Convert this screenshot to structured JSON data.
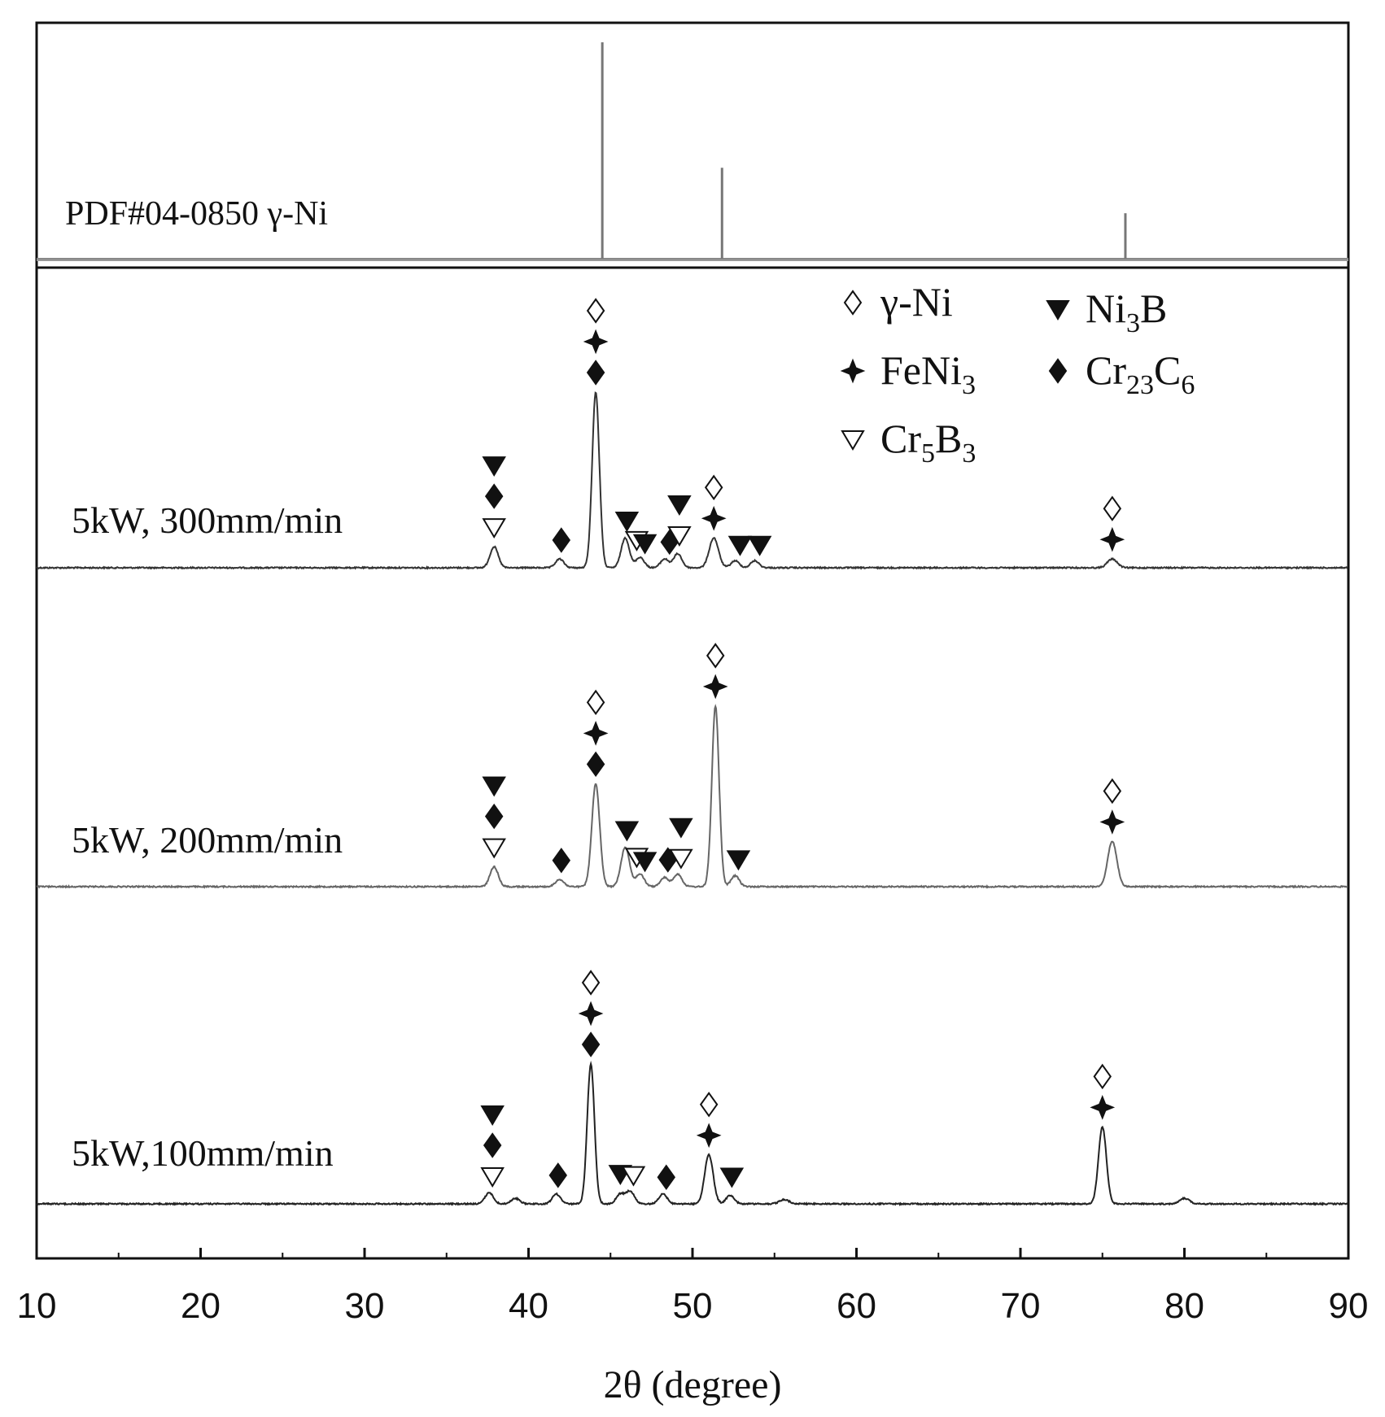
{
  "chart_data": {
    "type": "line",
    "title": "",
    "xlabel": "2θ (degree)",
    "ylabel": "",
    "xlim": [
      10,
      90
    ],
    "xticks": [
      "10",
      "20",
      "30",
      "40",
      "50",
      "60",
      "70",
      "80",
      "90"
    ],
    "reference": {
      "label": "PDF#04-0850  γ-Ni",
      "lines": [
        {
          "x": 44.5,
          "intensity": 100
        },
        {
          "x": 51.8,
          "intensity": 42
        },
        {
          "x": 76.4,
          "intensity": 21
        }
      ]
    },
    "legend": {
      "position": "top-right",
      "entries": [
        {
          "symbol": "diamond-open",
          "name": "γ-Ni",
          "text": "γ-Ni"
        },
        {
          "symbol": "triangle-down-filled",
          "name": "Ni3B",
          "text": "Ni",
          "sub": "3",
          "tail": "B"
        },
        {
          "symbol": "star4-filled",
          "name": "FeNi3",
          "text": "FeNi",
          "sub": "3",
          "tail": ""
        },
        {
          "symbol": "diamond-filled",
          "name": "Cr23C6",
          "text": "Cr",
          "sub": "23",
          "tail": "C",
          "sub2": "6"
        },
        {
          "symbol": "triangle-down-open",
          "name": "Cr5B3",
          "text": "Cr",
          "sub": "5",
          "tail": "B",
          "sub2": "3"
        }
      ]
    },
    "series": [
      {
        "name": "5kW, 300mm/min",
        "color": "#333333",
        "peaks": [
          {
            "x": 37.9,
            "h": 12,
            "w": 0.25
          },
          {
            "x": 41.9,
            "h": 5,
            "w": 0.25
          },
          {
            "x": 44.1,
            "h": 100,
            "w": 0.22
          },
          {
            "x": 45.9,
            "h": 17,
            "w": 0.25
          },
          {
            "x": 46.8,
            "h": 6,
            "w": 0.25
          },
          {
            "x": 48.3,
            "h": 5,
            "w": 0.25
          },
          {
            "x": 49.1,
            "h": 8,
            "w": 0.25
          },
          {
            "x": 51.3,
            "h": 17,
            "w": 0.28
          },
          {
            "x": 52.6,
            "h": 4,
            "w": 0.25
          },
          {
            "x": 53.8,
            "h": 4,
            "w": 0.25
          },
          {
            "x": 75.6,
            "h": 5,
            "w": 0.3
          }
        ],
        "markers": [
          {
            "x": 37.9,
            "stack": [
              "triangle-down-filled",
              "diamond-filled",
              "triangle-down-open"
            ]
          },
          {
            "x": 42.0,
            "stack": [
              "diamond-filled"
            ]
          },
          {
            "x": 44.1,
            "stack": [
              "diamond-open",
              "star4-filled",
              "diamond-filled"
            ]
          },
          {
            "x": 46.0,
            "stack": [
              "triangle-down-filled"
            ]
          },
          {
            "x": 46.6,
            "stack": [
              "triangle-down-open"
            ]
          },
          {
            "x": 47.1,
            "stack": [
              "triangle-down-filled"
            ]
          },
          {
            "x": 48.6,
            "stack": [
              "diamond-filled"
            ]
          },
          {
            "x": 49.2,
            "stack": [
              "triangle-down-filled",
              "triangle-down-open"
            ]
          },
          {
            "x": 51.3,
            "stack": [
              "diamond-open",
              "star4-filled"
            ]
          },
          {
            "x": 52.9,
            "stack": [
              "triangle-down-filled"
            ]
          },
          {
            "x": 54.1,
            "stack": [
              "triangle-down-filled"
            ]
          },
          {
            "x": 75.6,
            "stack": [
              "diamond-open",
              "star4-filled"
            ]
          }
        ]
      },
      {
        "name": "5kW, 200mm/min",
        "color": "#666666",
        "peaks": [
          {
            "x": 37.9,
            "h": 11,
            "w": 0.25
          },
          {
            "x": 41.9,
            "h": 4,
            "w": 0.25
          },
          {
            "x": 44.1,
            "h": 57,
            "w": 0.24
          },
          {
            "x": 45.9,
            "h": 22,
            "w": 0.26
          },
          {
            "x": 46.8,
            "h": 7,
            "w": 0.25
          },
          {
            "x": 48.3,
            "h": 5,
            "w": 0.25
          },
          {
            "x": 49.1,
            "h": 7,
            "w": 0.25
          },
          {
            "x": 51.4,
            "h": 100,
            "w": 0.22
          },
          {
            "x": 52.6,
            "h": 6,
            "w": 0.25
          },
          {
            "x": 75.6,
            "h": 25,
            "w": 0.28
          }
        ],
        "markers": [
          {
            "x": 37.9,
            "stack": [
              "triangle-down-filled",
              "diamond-filled",
              "triangle-down-open"
            ]
          },
          {
            "x": 42.0,
            "stack": [
              "diamond-filled"
            ]
          },
          {
            "x": 44.1,
            "stack": [
              "diamond-open",
              "star4-filled",
              "diamond-filled"
            ]
          },
          {
            "x": 46.0,
            "stack": [
              "triangle-down-filled"
            ]
          },
          {
            "x": 46.6,
            "stack": [
              "triangle-down-open"
            ]
          },
          {
            "x": 47.1,
            "stack": [
              "triangle-down-filled"
            ]
          },
          {
            "x": 48.5,
            "stack": [
              "diamond-filled"
            ]
          },
          {
            "x": 49.3,
            "stack": [
              "triangle-down-filled",
              "triangle-down-open"
            ]
          },
          {
            "x": 51.4,
            "stack": [
              "diamond-open",
              "star4-filled"
            ]
          },
          {
            "x": 52.8,
            "stack": [
              "triangle-down-filled"
            ]
          },
          {
            "x": 75.6,
            "stack": [
              "diamond-open",
              "star4-filled"
            ]
          }
        ]
      },
      {
        "name": "5kW,100mm/min",
        "color": "#222222",
        "peaks": [
          {
            "x": 37.6,
            "h": 8,
            "w": 0.25
          },
          {
            "x": 39.2,
            "h": 4,
            "w": 0.25
          },
          {
            "x": 41.7,
            "h": 7,
            "w": 0.25
          },
          {
            "x": 43.8,
            "h": 100,
            "w": 0.22
          },
          {
            "x": 45.6,
            "h": 7,
            "w": 0.25
          },
          {
            "x": 46.2,
            "h": 9,
            "w": 0.25
          },
          {
            "x": 48.2,
            "h": 7,
            "w": 0.25
          },
          {
            "x": 51.0,
            "h": 35,
            "w": 0.26
          },
          {
            "x": 52.3,
            "h": 6,
            "w": 0.25
          },
          {
            "x": 55.6,
            "h": 3,
            "w": 0.3
          },
          {
            "x": 75.0,
            "h": 55,
            "w": 0.24
          },
          {
            "x": 80.0,
            "h": 4,
            "w": 0.3
          }
        ],
        "markers": [
          {
            "x": 37.8,
            "stack": [
              "triangle-down-filled",
              "diamond-filled",
              "triangle-down-open"
            ]
          },
          {
            "x": 41.8,
            "stack": [
              "diamond-filled"
            ]
          },
          {
            "x": 43.8,
            "stack": [
              "diamond-open",
              "star4-filled",
              "diamond-filled"
            ]
          },
          {
            "x": 45.6,
            "stack": [
              "triangle-down-filled"
            ]
          },
          {
            "x": 46.4,
            "stack": [
              "triangle-down-open"
            ]
          },
          {
            "x": 48.4,
            "stack": [
              "diamond-filled"
            ]
          },
          {
            "x": 51.0,
            "stack": [
              "diamond-open",
              "star4-filled"
            ]
          },
          {
            "x": 52.4,
            "stack": [
              "triangle-down-filled"
            ]
          },
          {
            "x": 75.0,
            "stack": [
              "diamond-open",
              "star4-filled"
            ]
          }
        ]
      }
    ]
  }
}
